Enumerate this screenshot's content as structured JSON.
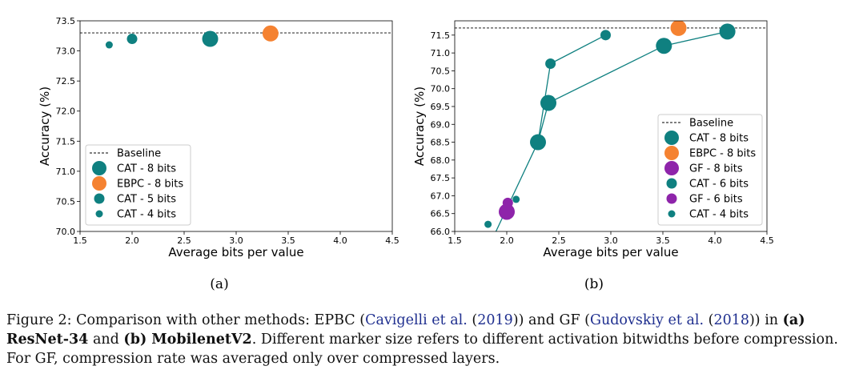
{
  "chart_data": [
    {
      "type": "scatter",
      "sub_label": "(a)",
      "xlabel": "Average bits per value",
      "ylabel": "Accuracy (%)",
      "xlim": [
        1.5,
        4.5
      ],
      "ylim": [
        70.0,
        73.5
      ],
      "xticks": [
        "1.5",
        "2.0",
        "2.5",
        "3.0",
        "3.5",
        "4.0",
        "4.5"
      ],
      "yticks": [
        "70.0",
        "70.5",
        "71.0",
        "71.5",
        "72.0",
        "72.5",
        "73.0",
        "73.5"
      ],
      "baseline": 73.3,
      "legend_position": "lower-left",
      "legend": [
        {
          "label": "Baseline",
          "kind": "line"
        },
        {
          "label": "CAT - 8 bits",
          "kind": "marker",
          "color": "#0f8080",
          "size": "large"
        },
        {
          "label": "EBPC - 8 bits",
          "kind": "marker",
          "color": "#f58231",
          "size": "large"
        },
        {
          "label": "CAT - 5 bits",
          "kind": "marker",
          "color": "#0f8080",
          "size": "medium"
        },
        {
          "label": "CAT - 4 bits",
          "kind": "marker",
          "color": "#0f8080",
          "size": "small"
        }
      ],
      "series": [
        {
          "name": "CAT - 8 bits",
          "color": "#0f8080",
          "size": "large",
          "connect": false,
          "points": [
            [
              2.75,
              73.2
            ]
          ]
        },
        {
          "name": "EBPC - 8 bits",
          "color": "#f58231",
          "size": "large",
          "connect": false,
          "points": [
            [
              3.33,
              73.29
            ]
          ]
        },
        {
          "name": "CAT - 5 bits",
          "color": "#0f8080",
          "size": "medium",
          "connect": false,
          "points": [
            [
              2.0,
              73.2
            ]
          ]
        },
        {
          "name": "CAT - 4 bits",
          "color": "#0f8080",
          "size": "small",
          "connect": false,
          "points": [
            [
              1.78,
              73.1
            ]
          ]
        }
      ]
    },
    {
      "type": "scatter",
      "sub_label": "(b)",
      "xlabel": "Average bits per value",
      "ylabel": "Accuracy (%)",
      "xlim": [
        1.5,
        4.5
      ],
      "ylim": [
        66.0,
        71.9
      ],
      "xticks": [
        "1.5",
        "2.0",
        "2.5",
        "3.0",
        "3.5",
        "4.0",
        "4.5"
      ],
      "yticks": [
        "66.0",
        "66.5",
        "67.0",
        "67.5",
        "68.0",
        "68.5",
        "69.0",
        "69.5",
        "70.0",
        "70.5",
        "71.0",
        "71.5"
      ],
      "baseline": 71.7,
      "legend_position": "lower-right",
      "legend": [
        {
          "label": "Baseline",
          "kind": "line"
        },
        {
          "label": "CAT - 8 bits",
          "kind": "marker",
          "color": "#0f8080",
          "size": "large"
        },
        {
          "label": "EBPC - 8 bits",
          "kind": "marker",
          "color": "#f58231",
          "size": "large"
        },
        {
          "label": "GF - 8 bits",
          "kind": "marker",
          "color": "#8e24aa",
          "size": "large"
        },
        {
          "label": "CAT - 6 bits",
          "kind": "marker",
          "color": "#0f8080",
          "size": "medium"
        },
        {
          "label": "GF - 6 bits",
          "kind": "marker",
          "color": "#8e24aa",
          "size": "medium"
        },
        {
          "label": "CAT - 4 bits",
          "kind": "marker",
          "color": "#0f8080",
          "size": "small"
        }
      ],
      "series": [
        {
          "name": "CAT - 8 bits",
          "color": "#0f8080",
          "size": "large",
          "connect": true,
          "points": [
            [
              2.3,
              68.5
            ],
            [
              2.4,
              69.6
            ],
            [
              3.51,
              71.2
            ],
            [
              4.12,
              71.6
            ]
          ]
        },
        {
          "name": "CAT - 6 bits",
          "color": "#0f8080",
          "size": "medium",
          "connect": true,
          "points": [
            [
              2.42,
              70.7
            ],
            [
              2.95,
              71.5
            ]
          ]
        },
        {
          "name": "EBPC - 8 bits",
          "color": "#f58231",
          "size": "large",
          "connect": false,
          "points": [
            [
              3.65,
              71.7
            ]
          ]
        },
        {
          "name": "GF - 8 bits",
          "color": "#8e24aa",
          "size": "large",
          "connect": false,
          "points": [
            [
              2.0,
              66.55
            ]
          ]
        },
        {
          "name": "GF - 6 bits",
          "color": "#8e24aa",
          "size": "medium",
          "connect": false,
          "points": [
            [
              2.01,
              66.8
            ]
          ]
        },
        {
          "name": "CAT - 4 bits",
          "color": "#0f8080",
          "size": "small",
          "connect": false,
          "points": [
            [
              1.82,
              66.2
            ],
            [
              2.09,
              66.9
            ]
          ]
        }
      ],
      "extra_segments": [
        {
          "color": "#0f8080",
          "points": [
            [
              1.88,
              65.9
            ],
            [
              2.3,
              68.5
            ]
          ]
        },
        {
          "color": "#0f8080",
          "points": [
            [
              2.3,
              68.5
            ],
            [
              2.42,
              70.7
            ]
          ]
        }
      ]
    }
  ],
  "caption": {
    "prefix": "Figure 2: Comparison with other methods: EPBC (",
    "ref1_author": "Cavigelli et al.",
    "ref1_open": " (",
    "ref1_year": "2019",
    "ref1_close": ")) and GF (",
    "ref2_author": "Gudovskiy et al.",
    "ref2_open": " (",
    "ref2_year": "2018",
    "ref2_close": ")) in ",
    "bold_a": "(a) ResNet-34",
    "mid": " and ",
    "bold_b": "(b) MobilenetV2",
    "suffix": ". Different marker size refers to different activation bitwidths before compression. For GF, compression rate was averaged only over compressed layers."
  }
}
